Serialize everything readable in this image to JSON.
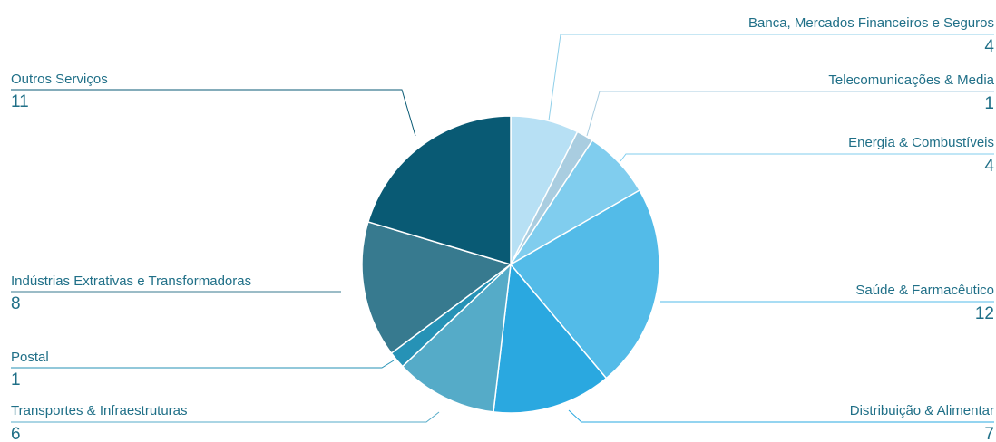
{
  "chart_data": {
    "type": "pie",
    "title": "",
    "slices": [
      {
        "label": "Banca, Mercados Financeiros e Seguros",
        "value": 4,
        "color": "#b7e0f4"
      },
      {
        "label": "Telecomunicações & Media",
        "value": 1,
        "color": "#a9cde0"
      },
      {
        "label": "Energia & Combustíveis",
        "value": 4,
        "color": "#80cdee"
      },
      {
        "label": "Saúde & Farmacêutico",
        "value": 12,
        "color": "#53bbe8"
      },
      {
        "label": "Distribuição & Alimentar",
        "value": 7,
        "color": "#2aa8e0"
      },
      {
        "label": "Transportes & Infraestruturas",
        "value": 6,
        "color": "#55abc8"
      },
      {
        "label": "Postal",
        "value": 1,
        "color": "#2692b6"
      },
      {
        "label": "Indústrias Extrativas e Transformadoras",
        "value": 8,
        "color": "#377a8f"
      },
      {
        "label": "Outros Serviços",
        "value": 11,
        "color": "#095a74"
      }
    ]
  }
}
